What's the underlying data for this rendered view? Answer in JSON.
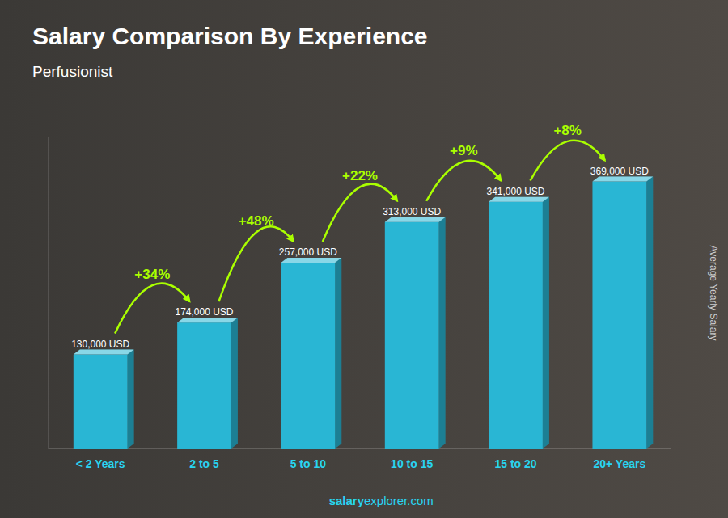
{
  "chart_data": {
    "type": "bar",
    "title": "Salary Comparison By Experience",
    "subtitle": "Perfusionist",
    "y_label": "Average Yearly Salary",
    "categories": [
      "< 2 Years",
      "2 to 5",
      "5 to 10",
      "10 to 15",
      "15 to 20",
      "20+ Years"
    ],
    "values": [
      130000,
      174000,
      257000,
      313000,
      341000,
      369000
    ],
    "value_labels": [
      "130,000 USD",
      "174,000 USD",
      "257,000 USD",
      "313,000 USD",
      "341,000 USD",
      "369,000 USD"
    ],
    "annotations": [
      "+34%",
      "+48%",
      "+22%",
      "+9%",
      "+8%",
      "salary",
      "explorer.com"
    ],
    "color": "#29b6d4",
    "ylim": [
      0,
      430000
    ],
    "grid": false,
    "data_labels": true,
    "tick_labels": "x"
  }
}
